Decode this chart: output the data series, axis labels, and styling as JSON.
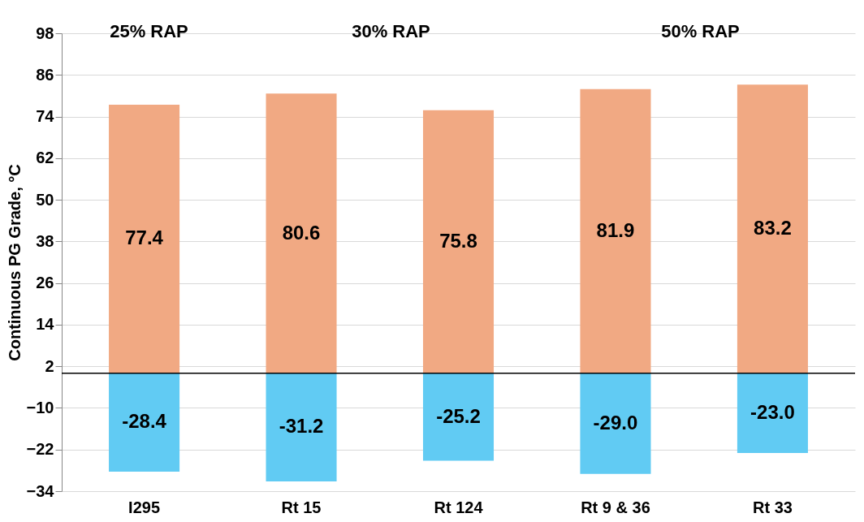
{
  "chart_data": {
    "type": "bar",
    "ylabel": "Continuous PG Grade, °C",
    "stacked": true,
    "categories": [
      "I295",
      "Rt 15",
      "Rt 124",
      "Rt 9 & 36",
      "Rt 33"
    ],
    "series": [
      {
        "color": "#f1a983",
        "values": [
          77.4,
          80.6,
          75.8,
          81.9,
          83.2
        ]
      },
      {
        "color": "#61cbf3",
        "values": [
          -28.4,
          -31.2,
          -25.2,
          -29.0,
          -23.0
        ]
      }
    ],
    "value_labels": [
      [
        "77.4",
        "80.6",
        "75.8",
        "81.9",
        "83.2"
      ],
      [
        "-28.4",
        "-31.2",
        "-25.2",
        "-29.0",
        "-23.0"
      ]
    ],
    "ylim": [
      -34,
      98
    ],
    "yticks": [
      -34,
      -22,
      -10,
      2,
      14,
      26,
      38,
      50,
      62,
      74,
      86,
      98
    ],
    "grid": "y",
    "annotations": [
      "25% RAP",
      "30% RAP",
      "50% RAP"
    ]
  }
}
